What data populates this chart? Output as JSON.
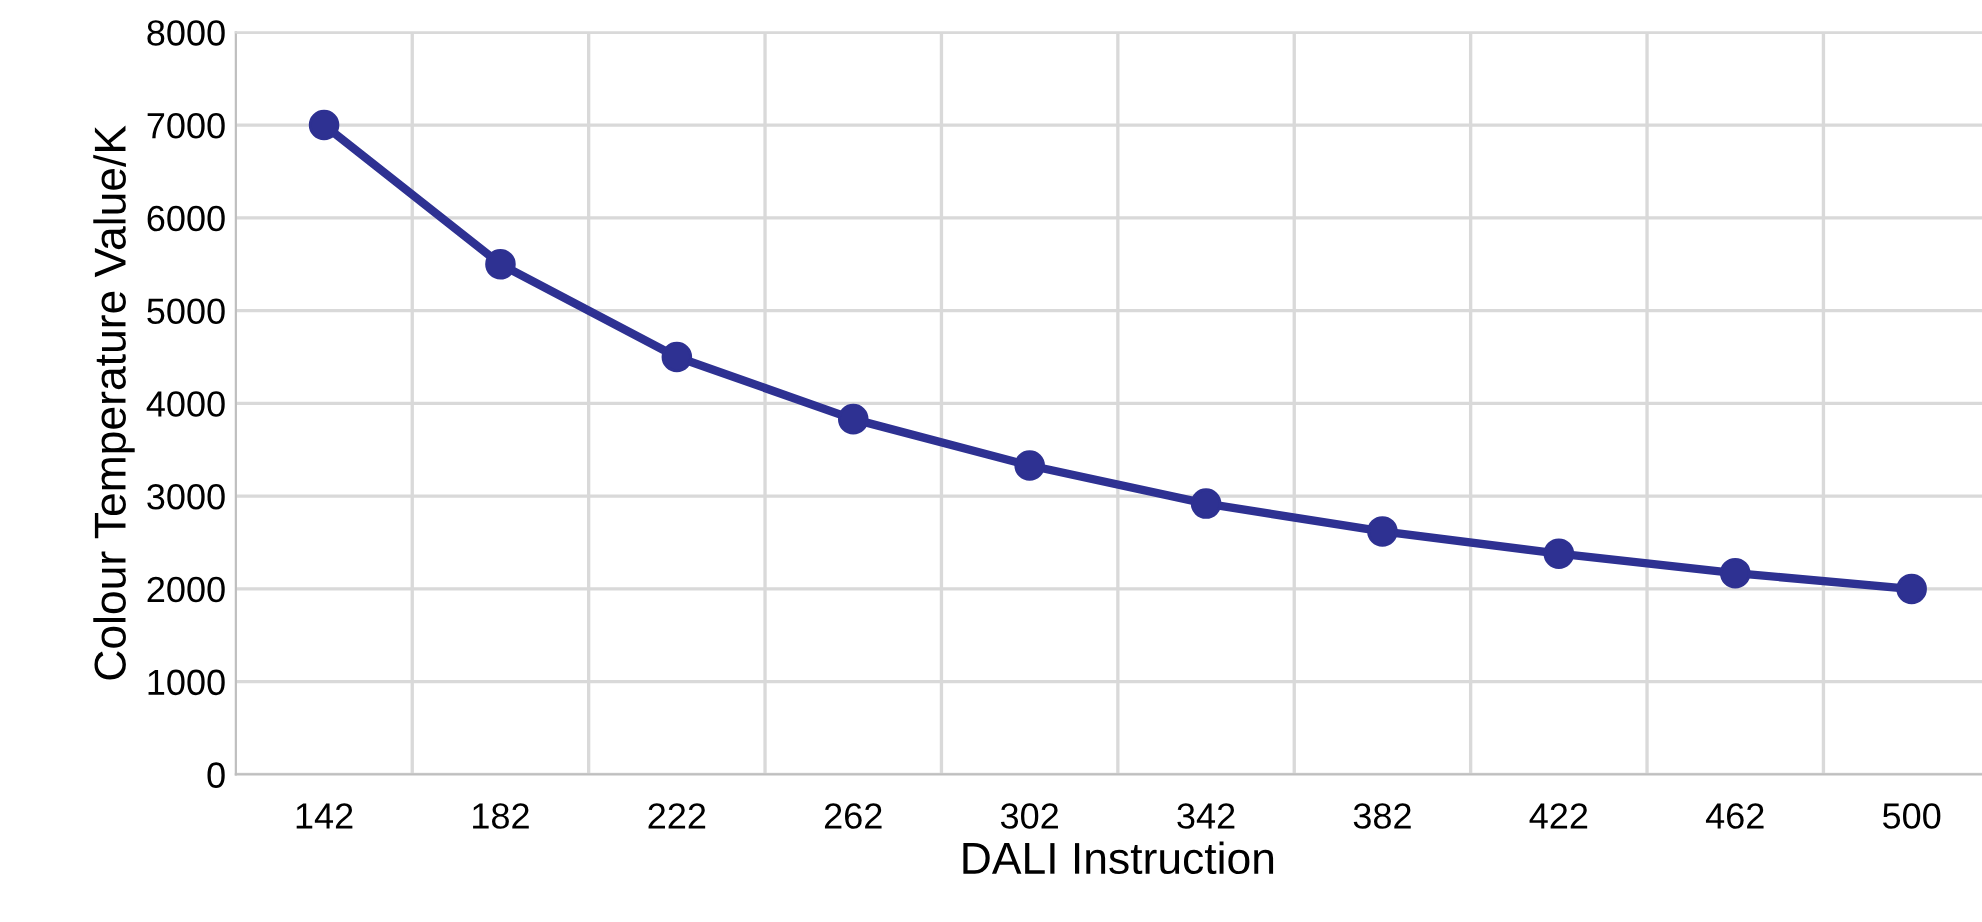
{
  "chart_data": {
    "type": "line",
    "xlabel": "DALI Instruction",
    "ylabel": "Colour Temperature Value/K",
    "categories": [
      "142",
      "182",
      "222",
      "262",
      "302",
      "342",
      "382",
      "422",
      "462",
      "500"
    ],
    "series": [
      {
        "color": "#2e3192",
        "values": [
          7000,
          5500,
          4500,
          3830,
          3330,
          2920,
          2620,
          2380,
          2170,
          2000
        ]
      }
    ],
    "ylim": [
      0,
      8000
    ],
    "yticks": [
      0,
      1000,
      2000,
      3000,
      4000,
      5000,
      6000,
      7000,
      8000
    ],
    "grid": true,
    "marker": "circle",
    "line_style": "solid"
  }
}
